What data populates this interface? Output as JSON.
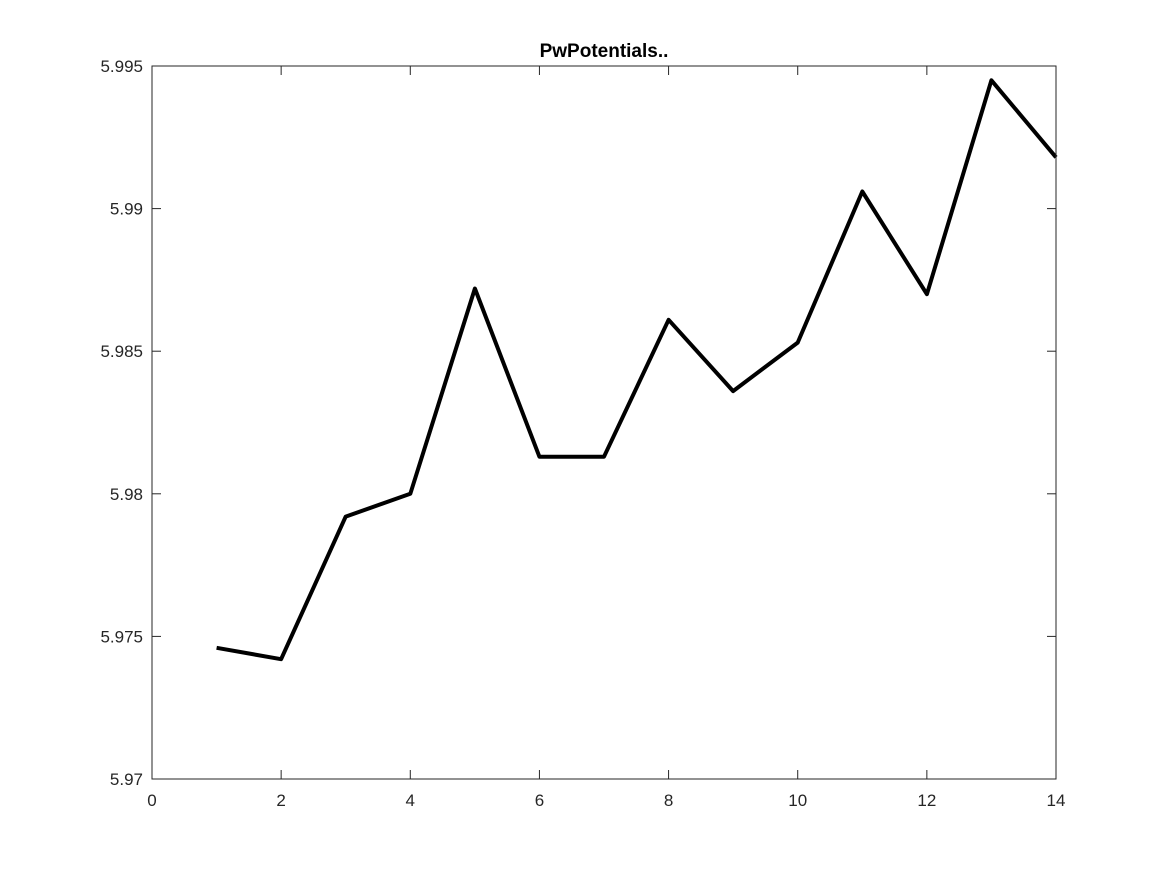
{
  "chart_data": {
    "type": "line",
    "title": "PwPotentials..",
    "xlabel": "",
    "ylabel": "",
    "xlim": [
      0,
      14
    ],
    "ylim": [
      5.97,
      5.995
    ],
    "xticks": [
      0,
      2,
      4,
      6,
      8,
      10,
      12,
      14
    ],
    "xtick_labels": [
      "0",
      "2",
      "4",
      "6",
      "8",
      "10",
      "12",
      "14"
    ],
    "yticks": [
      5.97,
      5.975,
      5.98,
      5.985,
      5.99,
      5.995
    ],
    "ytick_labels": [
      "5.97",
      "5.975",
      "5.98",
      "5.985",
      "5.99",
      "5.995"
    ],
    "grid": false,
    "box": true,
    "series": [
      {
        "color": "#000000",
        "x": [
          1,
          2,
          3,
          4,
          5,
          6,
          7,
          8,
          9,
          10,
          11,
          12,
          13,
          14
        ],
        "y": [
          5.9746,
          5.9742,
          5.9792,
          5.98,
          5.9872,
          5.9813,
          5.9813,
          5.9861,
          5.9836,
          5.9853,
          5.9906,
          5.987,
          5.9945,
          5.9918
        ]
      }
    ]
  }
}
